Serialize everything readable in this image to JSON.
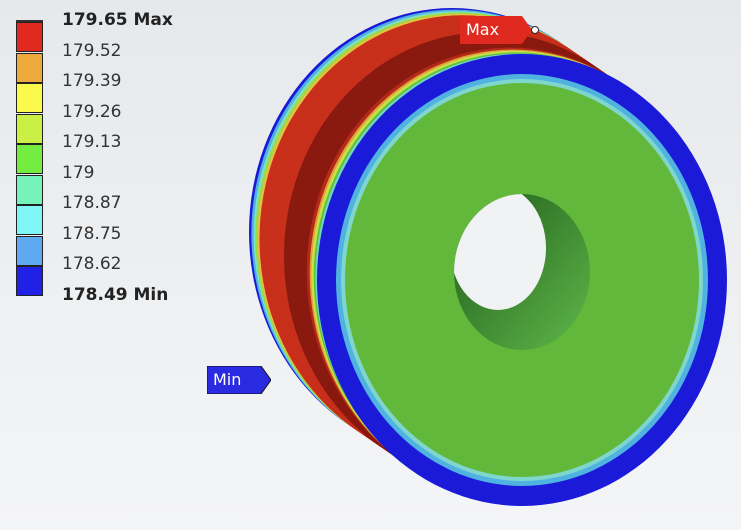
{
  "legend": {
    "labels": [
      "179.65 Max",
      "179.52",
      "179.39",
      "179.26",
      "179.13",
      "179",
      "178.87",
      "178.75",
      "178.62",
      "178.49 Min"
    ],
    "band_colors": [
      "#e0291f",
      "#eea93c",
      "#fbf94b",
      "#caf046",
      "#74ec40",
      "#76f3b8",
      "#7ff6f5",
      "#5fa9f0",
      "#2020e6"
    ]
  },
  "probes": {
    "max_label": "Max",
    "min_label": "Min",
    "max_color": "#e0291f",
    "min_color": "#2a2ae0"
  }
}
